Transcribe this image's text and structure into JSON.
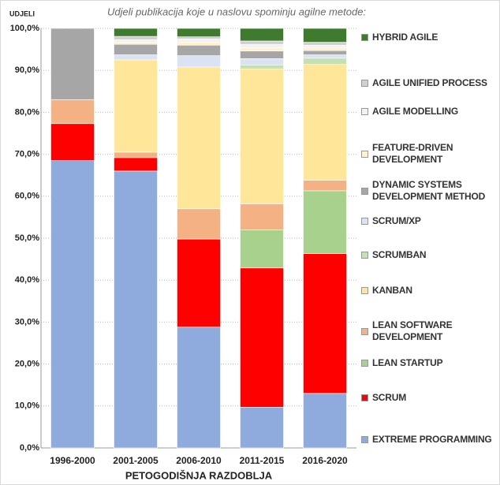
{
  "chart_data": {
    "type": "stacked_bar",
    "title": "Udjeli publikacija koje u naslovu spominju agilne metode:",
    "y_label": "UDJELI",
    "x_label": "PETOGODIŠNJA RAZDOBLJA",
    "categories": [
      "1996-2000",
      "2001-2005",
      "2006-2010",
      "2011-2015",
      "2016-2020"
    ],
    "series": [
      {
        "name": "EXTREME PROGRAMMING",
        "color": "#8faadc",
        "values": [
          68.5,
          66,
          28.8,
          9.7,
          13
        ]
      },
      {
        "name": "SCRUM",
        "color": "#ff0000",
        "values": [
          8.8,
          3.2,
          21,
          33.2,
          33.3
        ]
      },
      {
        "name": "LEAN STARTUP",
        "color": "#a9d18e",
        "values": [
          0,
          0,
          0,
          9.1,
          15
        ]
      },
      {
        "name": "LEAN SOFTWARE DEVELOPMENT",
        "color": "#f4b183",
        "values": [
          5.7,
          1.3,
          7.2,
          6.2,
          2.5
        ]
      },
      {
        "name": "KANBAN",
        "color": "#ffe699",
        "values": [
          0,
          22,
          33.8,
          32.1,
          27.6
        ]
      },
      {
        "name": "SCRUMBAN",
        "color": "#c5e0b4",
        "values": [
          0,
          0,
          0,
          1,
          1.5
        ]
      },
      {
        "name": "SCRUM/XP",
        "color": "#dae3f3",
        "values": [
          0,
          1.2,
          2.7,
          1.5,
          0.8
        ]
      },
      {
        "name": "DYNAMIC SYSTEMS DEVELOPMENT METHOD",
        "color": "#a6a6a6",
        "values": [
          17,
          2.5,
          2.5,
          1.8,
          1
        ]
      },
      {
        "name": "FEATURE-DRIVEN DEVELOPMENT",
        "color": "#fff2cc",
        "values": [
          0,
          0.5,
          0.7,
          0.8,
          0.7
        ]
      },
      {
        "name": "AGILE MODELLING",
        "color": "#f2f2f2",
        "values": [
          0,
          0.6,
          0.8,
          0.8,
          0.6
        ]
      },
      {
        "name": "AGILE UNIFIED PROCESS",
        "color": "#d0d0d0",
        "values": [
          0,
          0.8,
          0.5,
          0.8,
          0.7
        ]
      },
      {
        "name": "HYBRID AGILE",
        "color": "#3f7a2e",
        "values": [
          0,
          1.9,
          2,
          3,
          3.3
        ]
      }
    ],
    "ylim": [
      0,
      100
    ],
    "yticks": [
      {
        "value": 0,
        "label": "0,0%"
      },
      {
        "value": 10,
        "label": "10,0%"
      },
      {
        "value": 20,
        "label": "20,0%"
      },
      {
        "value": 30,
        "label": "30,0%"
      },
      {
        "value": 40,
        "label": "40,0%"
      },
      {
        "value": 50,
        "label": "50,0%"
      },
      {
        "value": 60,
        "label": "60,0%"
      },
      {
        "value": 70,
        "label": "70,0%"
      },
      {
        "value": 80,
        "label": "80,0%"
      },
      {
        "value": 90,
        "label": "90,0%"
      },
      {
        "value": 100,
        "label": "100,0%"
      }
    ],
    "grid": true
  }
}
